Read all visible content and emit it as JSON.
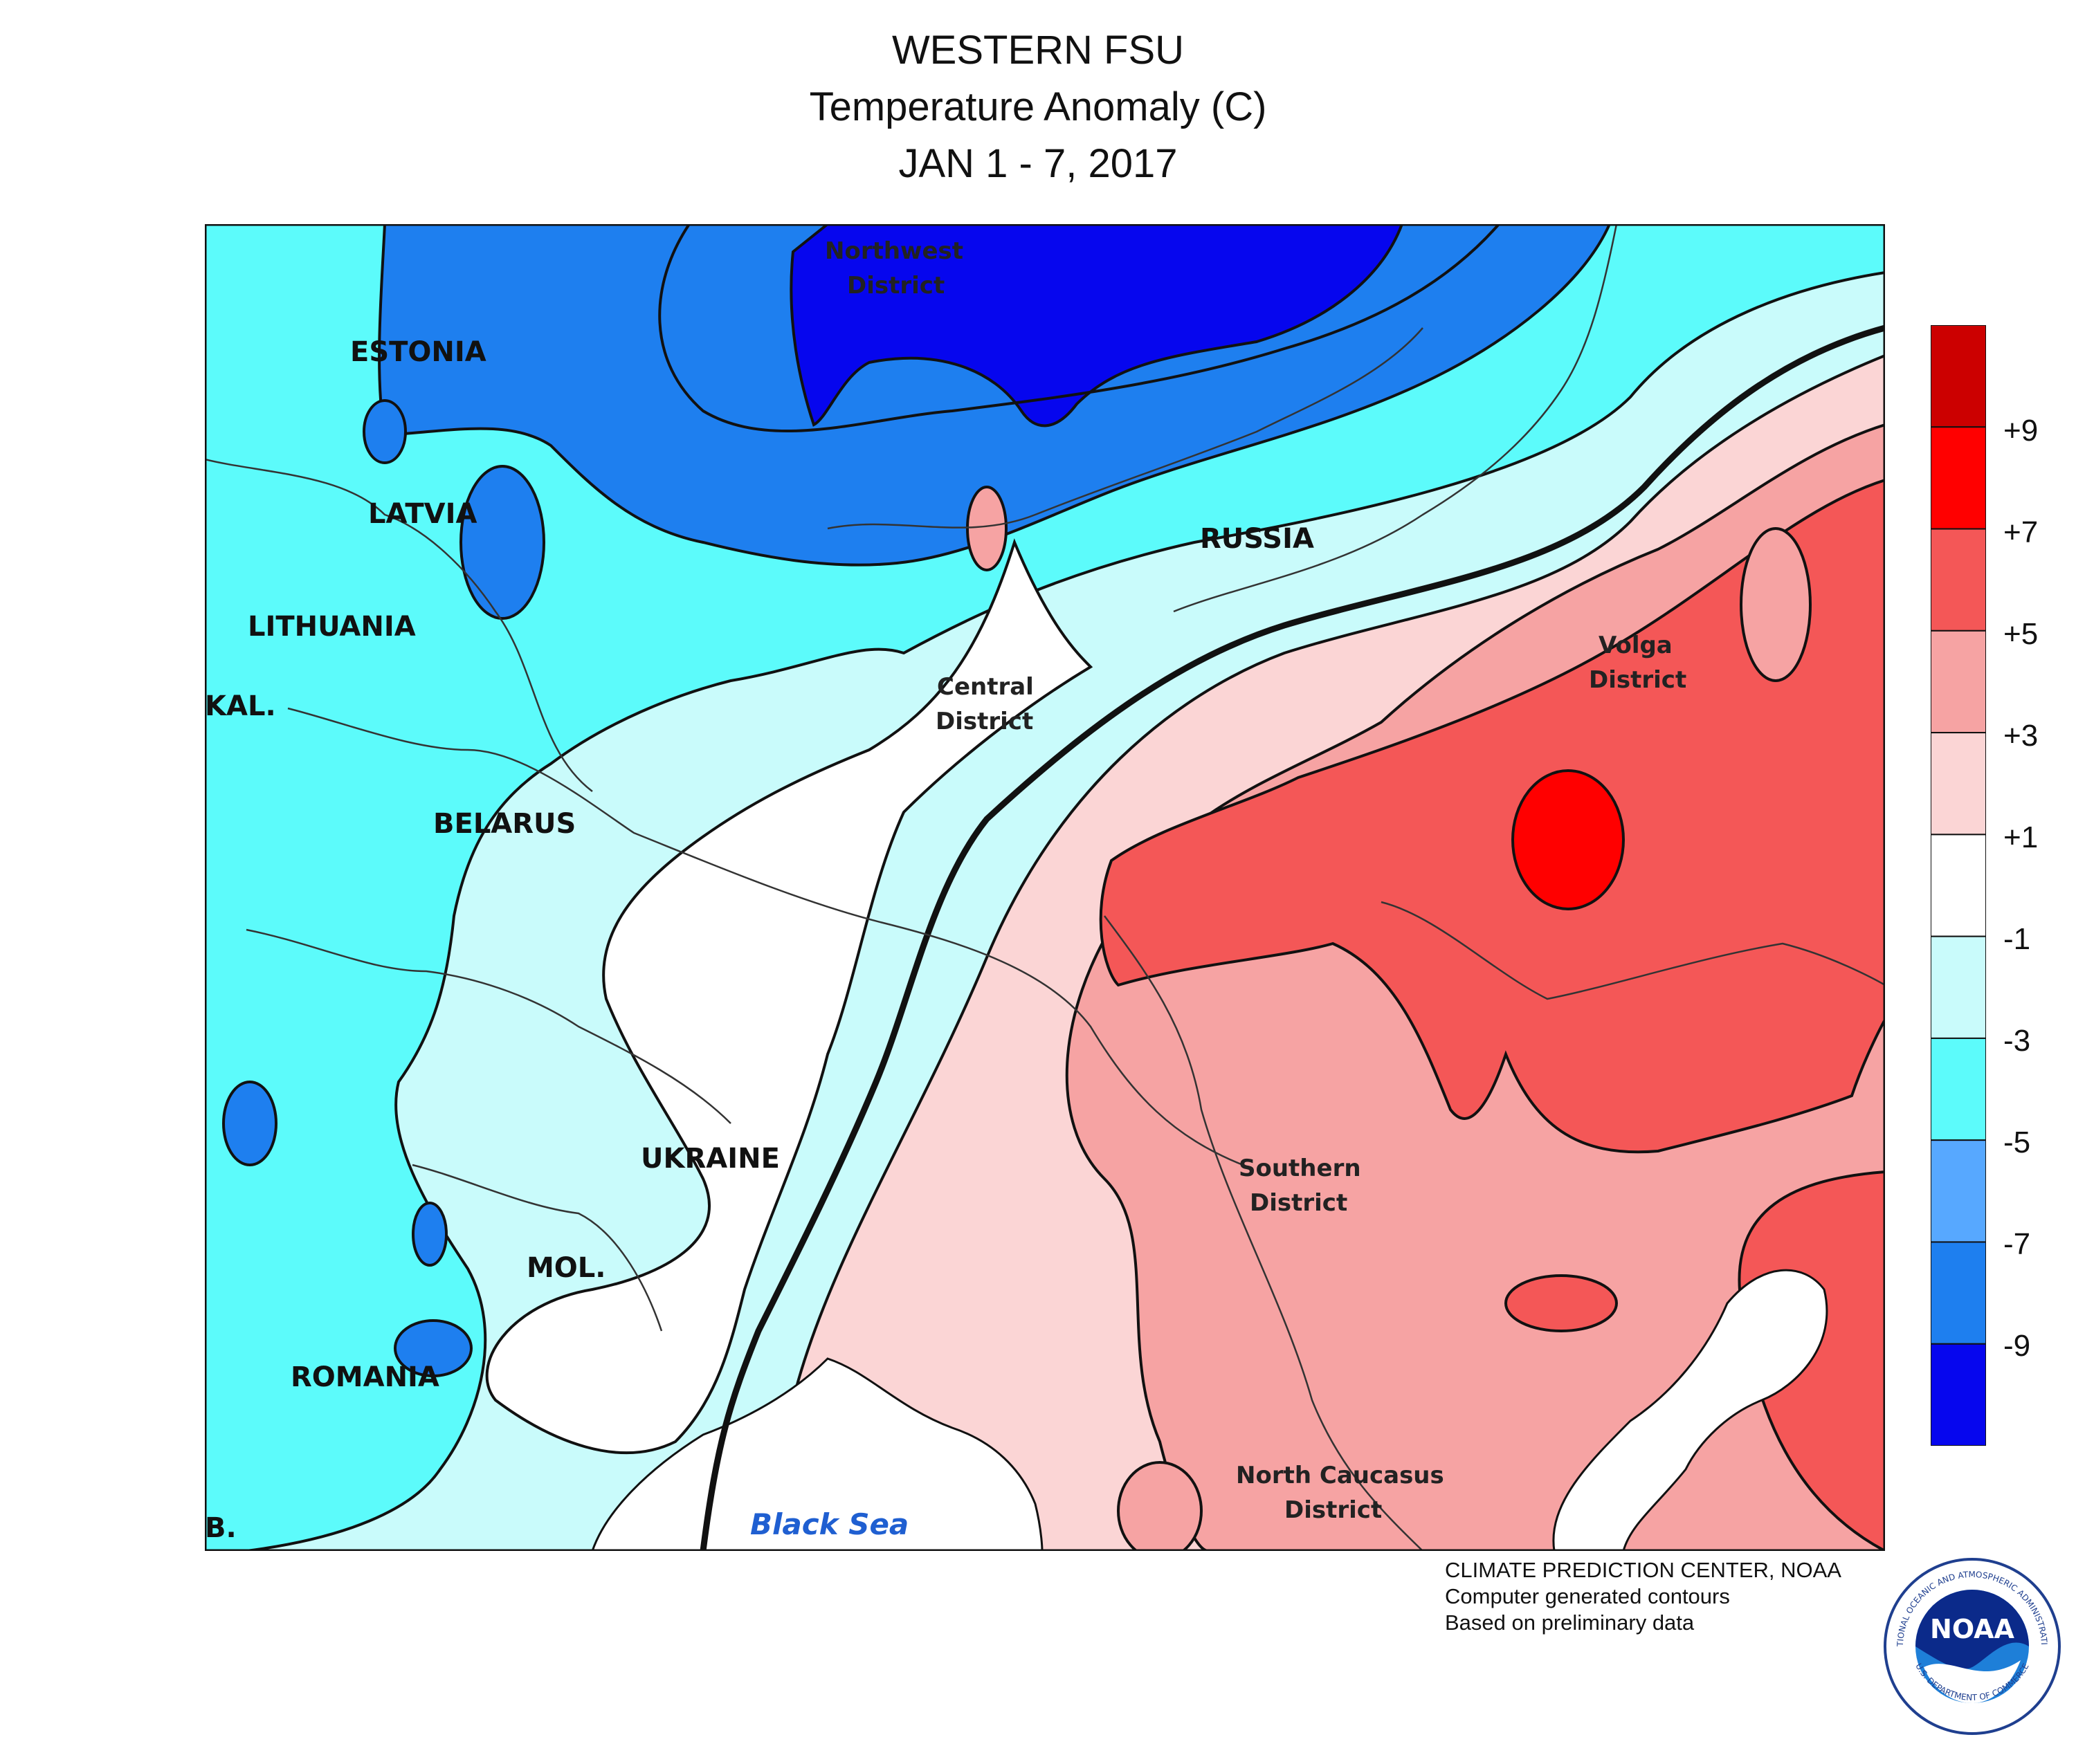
{
  "title": {
    "line1": "WESTERN FSU",
    "line2": "Temperature Anomaly (C)",
    "line3": "JAN 1 - 7, 2017"
  },
  "map_labels": {
    "estonia": "ESTONIA",
    "latvia": "LATVIA",
    "lithuania": "LITHUANIA",
    "kal": "KAL.",
    "belarus": "BELARUS",
    "ukraine": "UKRAINE",
    "mol": "MOL.",
    "romania": "ROMANIA",
    "russia": "RUSSIA",
    "bul": "B.",
    "northwest_1": "Northwest",
    "northwest_2": "District",
    "central_1": "Central",
    "central_2": "District",
    "volga_1": "Volga",
    "volga_2": "District",
    "southern_1": "Southern",
    "southern_2": "District",
    "ncaucasus_1": "North Caucasus",
    "ncaucasus_2": "District",
    "black_sea": "Black Sea"
  },
  "legend": {
    "ticks": [
      "+9",
      "+7",
      "+5",
      "+3",
      "+1",
      "-1",
      "-3",
      "-5",
      "-7",
      "-9"
    ],
    "colors": [
      "#cc0000",
      "#ff0000",
      "#f45757",
      "#f6a3a3",
      "#fbd5d5",
      "#ffffff",
      "#c9fbfb",
      "#5cfbfb",
      "#57a8ff",
      "#1e7fef",
      "#0606ee"
    ]
  },
  "credits": {
    "line1": "CLIMATE PREDICTION CENTER, NOAA",
    "line2": "Computer generated contours",
    "line3": "Based on preliminary data"
  },
  "logo": {
    "text": "NOAA",
    "ring_top": "NATIONAL OCEANIC AND ATMOSPHERIC ADMINISTRATION",
    "ring_bottom": "U.S. DEPARTMENT OF COMMERCE"
  }
}
